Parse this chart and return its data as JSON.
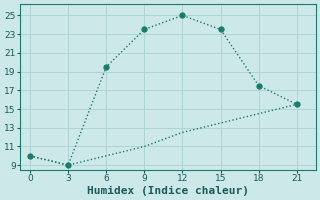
{
  "line1_x": [
    0,
    3,
    6,
    9,
    12,
    15,
    18,
    21
  ],
  "line1_y": [
    10,
    9,
    19.5,
    23.5,
    25,
    23.5,
    17.5,
    15.5
  ],
  "line2_x": [
    0,
    3,
    6,
    9,
    12,
    15,
    18,
    21
  ],
  "line2_y": [
    10,
    9,
    10,
    11,
    12.5,
    13.5,
    14.5,
    15.5
  ],
  "line_color": "#1a7a6e",
  "bg_color": "#cce8e8",
  "grid_color": "#b0d4d4",
  "xlabel": "Humidex (Indice chaleur)",
  "xlabel_fontsize": 8,
  "xticks": [
    0,
    3,
    6,
    9,
    12,
    15,
    18,
    21
  ],
  "yticks": [
    9,
    11,
    13,
    15,
    17,
    19,
    21,
    23,
    25
  ],
  "ylim": [
    8.5,
    26.2
  ],
  "xlim": [
    -0.8,
    22.5
  ],
  "marker_size": 3.5,
  "line_width": 1.0
}
